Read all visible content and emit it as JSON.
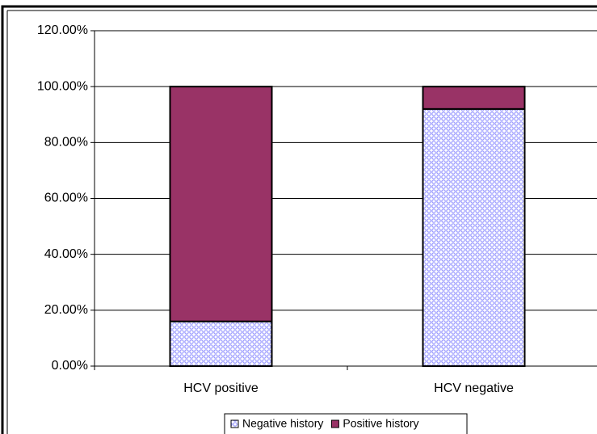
{
  "chart_data": {
    "type": "stacked_bar",
    "categories": [
      "HCV positive",
      "HCV negative"
    ],
    "series": [
      {
        "name": "Negative history",
        "color": "#9999ff",
        "values": [
          16,
          92
        ]
      },
      {
        "name": "Positive history",
        "color": "#993366",
        "values": [
          84,
          8
        ]
      }
    ],
    "ylim": [
      0,
      120
    ],
    "yticks": [
      {
        "value": 0,
        "label": "0.00%"
      },
      {
        "value": 20,
        "label": "20.00%"
      },
      {
        "value": 40,
        "label": "40.00%"
      },
      {
        "value": 60,
        "label": "60.00%"
      },
      {
        "value": 80,
        "label": "80.00%"
      },
      {
        "value": 100,
        "label": "100.00%"
      },
      {
        "value": 120,
        "label": "120.00%"
      }
    ],
    "grid": true,
    "legend": "bottom"
  }
}
